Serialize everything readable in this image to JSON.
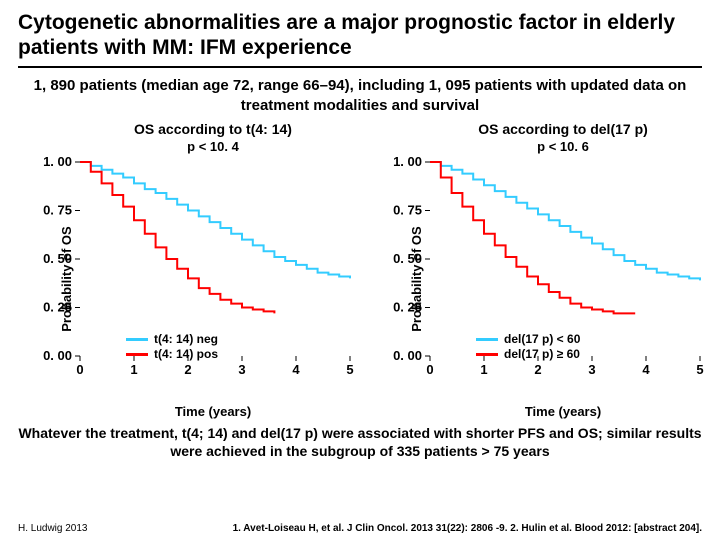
{
  "title": "Cytogenetic abnormalities are a major prognostic factor in elderly patients with MM: IFM experience",
  "subtitle": "1, 890 patients (median age 72, range 66–94), including 1, 095 patients with updated data on treatment modalities and survival",
  "conclusion": "Whatever the treatment, t(4; 14) and del(17 p) were associated with shorter PFS and OS; similar results were achieved in the subgroup of 335 patients > 75 years",
  "footer_left": "H. Ludwig 2013",
  "footer_refs": "1. Avet-Loiseau H, et al. J Clin Oncol. 2013 31(22): 2806 -9.  2. Hulin et al. Blood 2012: [abstract 204].",
  "axis": {
    "ylabel": "Probability of OS",
    "xlabel": "Time (years)",
    "xlim": [
      0,
      5
    ],
    "ylim": [
      0,
      1
    ],
    "xticks": [
      0,
      1,
      2,
      3,
      4,
      5
    ],
    "yticks": [
      0.0,
      0.25,
      0.5,
      0.75,
      1.0
    ],
    "xtick_labels": [
      "0",
      "1",
      "2",
      "3",
      "4",
      "5"
    ],
    "ytick_labels": [
      "0. 00",
      "0. 25",
      "0. 50",
      "0. 75",
      "1. 00"
    ]
  },
  "style": {
    "neg_color": "#33ccff",
    "pos_color": "#ff0000",
    "line_width": 2,
    "tick_fontsize": 13,
    "tick_fontweight": "bold"
  },
  "chart_left": {
    "title": "OS according to t(4: 14)",
    "pval": "p < 10. 4",
    "legend": {
      "neg": "t(4: 14) neg",
      "pos": "t(4: 14) pos"
    },
    "neg_series": {
      "x": [
        0,
        0.2,
        0.4,
        0.6,
        0.8,
        1.0,
        1.2,
        1.4,
        1.6,
        1.8,
        2.0,
        2.2,
        2.4,
        2.6,
        2.8,
        3.0,
        3.2,
        3.4,
        3.6,
        3.8,
        4.0,
        4.2,
        4.4,
        4.6,
        4.8,
        5.0
      ],
      "y": [
        1.0,
        0.98,
        0.96,
        0.94,
        0.92,
        0.89,
        0.86,
        0.84,
        0.81,
        0.78,
        0.75,
        0.72,
        0.69,
        0.66,
        0.63,
        0.6,
        0.57,
        0.54,
        0.51,
        0.49,
        0.47,
        0.45,
        0.43,
        0.42,
        0.41,
        0.4
      ]
    },
    "pos_series": {
      "x": [
        0,
        0.2,
        0.4,
        0.6,
        0.8,
        1.0,
        1.2,
        1.4,
        1.6,
        1.8,
        2.0,
        2.2,
        2.4,
        2.6,
        2.8,
        3.0,
        3.2,
        3.4,
        3.6
      ],
      "y": [
        1.0,
        0.95,
        0.89,
        0.83,
        0.77,
        0.7,
        0.63,
        0.56,
        0.5,
        0.45,
        0.4,
        0.35,
        0.32,
        0.29,
        0.27,
        0.25,
        0.24,
        0.23,
        0.22
      ]
    }
  },
  "chart_right": {
    "title": "OS according to del(17 p)",
    "pval": "p < 10. 6",
    "legend": {
      "neg": "del(17 p) < 60",
      "pos": "del(17 p) ≥ 60"
    },
    "neg_series": {
      "x": [
        0,
        0.2,
        0.4,
        0.6,
        0.8,
        1.0,
        1.2,
        1.4,
        1.6,
        1.8,
        2.0,
        2.2,
        2.4,
        2.6,
        2.8,
        3.0,
        3.2,
        3.4,
        3.6,
        3.8,
        4.0,
        4.2,
        4.4,
        4.6,
        4.8,
        5.0
      ],
      "y": [
        1.0,
        0.98,
        0.96,
        0.94,
        0.91,
        0.88,
        0.85,
        0.82,
        0.79,
        0.76,
        0.73,
        0.7,
        0.67,
        0.64,
        0.61,
        0.58,
        0.55,
        0.52,
        0.49,
        0.47,
        0.45,
        0.43,
        0.42,
        0.41,
        0.4,
        0.39
      ]
    },
    "pos_series": {
      "x": [
        0,
        0.2,
        0.4,
        0.6,
        0.8,
        1.0,
        1.2,
        1.4,
        1.6,
        1.8,
        2.0,
        2.2,
        2.4,
        2.6,
        2.8,
        3.0,
        3.2,
        3.4,
        3.6,
        3.8
      ],
      "y": [
        1.0,
        0.92,
        0.84,
        0.77,
        0.7,
        0.63,
        0.57,
        0.51,
        0.46,
        0.41,
        0.37,
        0.33,
        0.3,
        0.27,
        0.25,
        0.24,
        0.23,
        0.22,
        0.22,
        0.22
      ]
    }
  }
}
